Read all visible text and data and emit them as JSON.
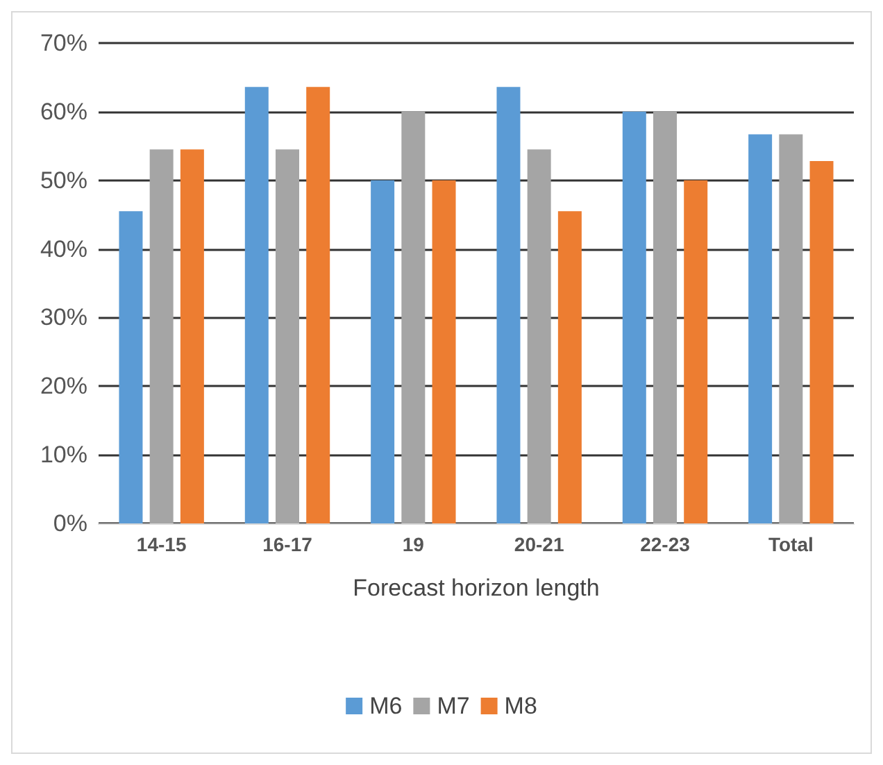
{
  "chart_data": {
    "type": "bar",
    "xlabel": "Forecast horizon length",
    "categories": [
      "14-15",
      "16-17",
      "19",
      "20-21",
      "22-23",
      "Total"
    ],
    "series": [
      {
        "name": "M6",
        "color": "#5b9bd5",
        "values": [
          45.5,
          63.6,
          50,
          63.6,
          60,
          56.7
        ]
      },
      {
        "name": "M7",
        "color": "#a5a5a5",
        "values": [
          54.5,
          54.5,
          60,
          54.5,
          60,
          56.7
        ]
      },
      {
        "name": "M8",
        "color": "#ed7d31",
        "values": [
          54.5,
          63.6,
          50,
          45.5,
          50,
          52.8
        ]
      }
    ],
    "ylim": [
      0,
      70
    ],
    "yticks": [
      {
        "value": 0,
        "label": "0%"
      },
      {
        "value": 10,
        "label": "10%"
      },
      {
        "value": 20,
        "label": "20%"
      },
      {
        "value": 30,
        "label": "30%"
      },
      {
        "value": 40,
        "label": "40%"
      },
      {
        "value": 50,
        "label": "50%"
      },
      {
        "value": 60,
        "label": "60%"
      },
      {
        "value": 70,
        "label": "70%"
      }
    ],
    "grid": "y",
    "legend": "bottom"
  }
}
